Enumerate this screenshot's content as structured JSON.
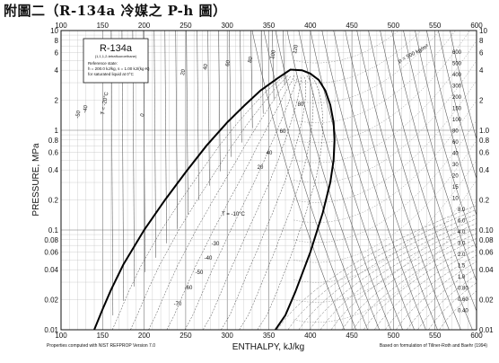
{
  "caption": "附圖二（R-134a 冷媒之 P-h 圖）",
  "chart_data": {
    "type": "line",
    "title": "R-134a",
    "subtitle": "(1,1,1,2-tetrafluoroethane)",
    "reference_state": [
      "Reference state:",
      "h = 200.0 kJ/kg,  s = 1.00 kJ/(kg·K)",
      "for saturated liquid at 0°C"
    ],
    "xlabel": "ENTHALPY, kJ/kg",
    "ylabel": "PRESSURE, MPa",
    "xlim": [
      100,
      600
    ],
    "ylim": [
      0.01,
      10
    ],
    "yscale": "log",
    "grid": true,
    "x_ticks": [
      100,
      150,
      200,
      250,
      300,
      350,
      400,
      450,
      500,
      550,
      600
    ],
    "y_ticks_left": [
      {
        "value": 10,
        "label": "10"
      },
      {
        "value": 8,
        "label": "8"
      },
      {
        "value": 6,
        "label": "6"
      },
      {
        "value": 4,
        "label": "4"
      },
      {
        "value": 2,
        "label": "2"
      },
      {
        "value": 1,
        "label": "1"
      },
      {
        "value": 0.8,
        "label": "0.8"
      },
      {
        "value": 0.6,
        "label": "0.6"
      },
      {
        "value": 0.4,
        "label": "0.4"
      },
      {
        "value": 0.2,
        "label": "0.2"
      },
      {
        "value": 0.1,
        "label": "0.1"
      },
      {
        "value": 0.08,
        "label": "0.08"
      },
      {
        "value": 0.06,
        "label": "0.06"
      },
      {
        "value": 0.04,
        "label": "0.04"
      },
      {
        "value": 0.02,
        "label": "0.02"
      },
      {
        "value": 0.01,
        "label": "0.01"
      }
    ],
    "y_ticks_right": [
      {
        "value": 10,
        "label": "10"
      },
      {
        "value": 8,
        "label": "8"
      },
      {
        "value": 6,
        "label": "6"
      },
      {
        "value": 4,
        "label": "4"
      },
      {
        "value": 2,
        "label": "2"
      },
      {
        "value": 1,
        "label": "1.0"
      },
      {
        "value": 0.8,
        "label": "0.8"
      },
      {
        "value": 0.6,
        "label": "0.6"
      },
      {
        "value": 0.4,
        "label": "0.4"
      },
      {
        "value": 0.2,
        "label": "0.2"
      },
      {
        "value": 0.1,
        "label": "0.10"
      },
      {
        "value": 0.08,
        "label": "0.08"
      },
      {
        "value": 0.06,
        "label": "0.06"
      },
      {
        "value": 0.04,
        "label": "0.04"
      },
      {
        "value": 0.02,
        "label": "0.02"
      },
      {
        "value": 0.01,
        "label": "0.01"
      }
    ],
    "saturated_liquid": {
      "h": [
        140,
        150,
        160,
        175,
        200,
        225,
        250,
        275,
        300,
        320,
        340,
        360,
        376
      ],
      "p": [
        0.01,
        0.016,
        0.025,
        0.045,
        0.1,
        0.2,
        0.38,
        0.7,
        1.2,
        1.75,
        2.5,
        3.3,
        4.06
      ]
    },
    "saturated_vapor": {
      "h": [
        376,
        390,
        400,
        410,
        418,
        424,
        428,
        429,
        428,
        424,
        415,
        400,
        382,
        370,
        358
      ],
      "p": [
        4.06,
        4.0,
        3.7,
        3.2,
        2.5,
        1.8,
        1.2,
        0.8,
        0.5,
        0.3,
        0.15,
        0.06,
        0.024,
        0.014,
        0.01
      ]
    },
    "isotherm_labels": [
      "80",
      "60",
      "40",
      "20",
      "T = -10°C",
      "-30",
      "-40",
      "-50",
      "-60",
      "-70"
    ],
    "density_labels": [
      "600",
      "500",
      "400",
      "300",
      "200",
      "150",
      "100",
      "80",
      "60",
      "40",
      "30",
      "20",
      "15",
      "10",
      "8.0",
      "6.0",
      "4.0",
      "3.0",
      "2.0",
      "1.5",
      "1.0",
      "0.80",
      "0.60",
      "0.40"
    ],
    "density_note": "ρ = 500 kg/m³",
    "temperature_top_labels": [
      "-50",
      "-40",
      "T = -20°C",
      "0",
      "20",
      "40",
      "60",
      "80",
      "100",
      "120"
    ],
    "footnote_left": "Properties computed with NIST REFPROP Version 7.0",
    "footnote_right": "Based on formulation of Tillner-Roth and Baehr (1994)"
  }
}
